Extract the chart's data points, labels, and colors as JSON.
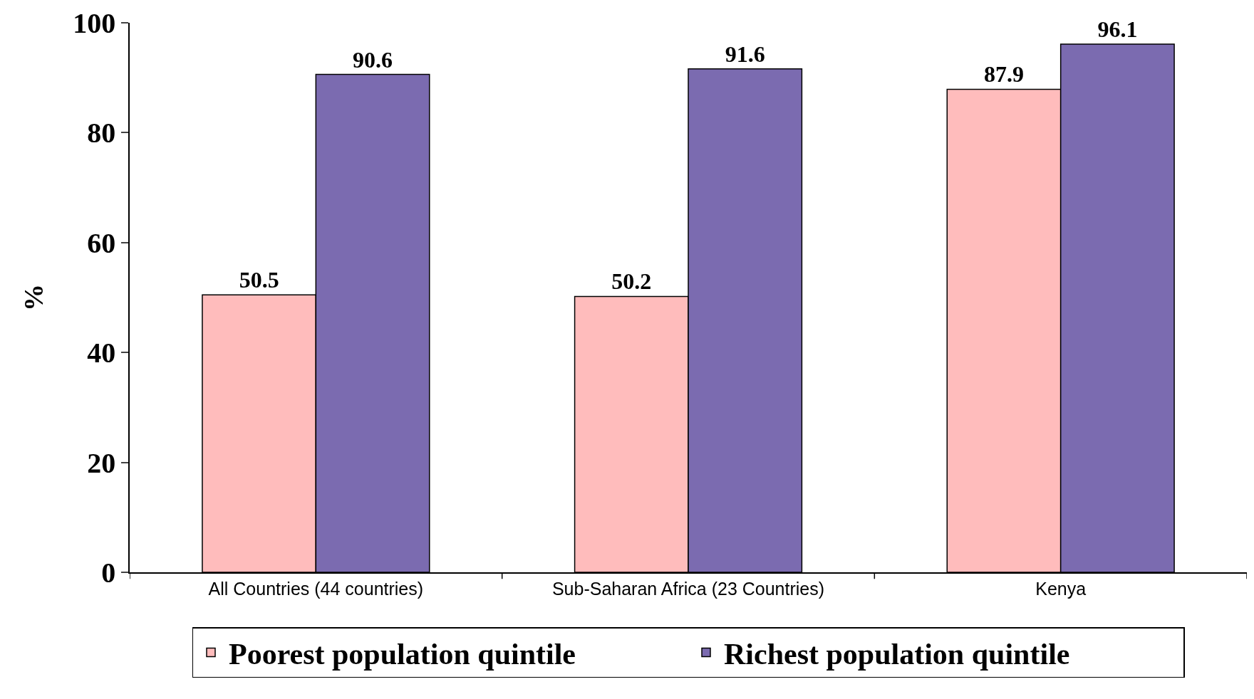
{
  "chart_data": {
    "type": "bar",
    "ylabel": "%",
    "categories": [
      "All Countries (44 countries)",
      "Sub-Saharan Africa (23 Countries)",
      "Kenya"
    ],
    "series": [
      {
        "name": "Poorest population quintile",
        "color": "#ffbcbc",
        "values": [
          50.5,
          50.2,
          87.9
        ]
      },
      {
        "name": "Richest population quintile",
        "color": "#7b6bb0",
        "values": [
          90.6,
          91.6,
          96.1
        ]
      }
    ],
    "ylim": [
      0,
      100
    ],
    "yticks": [
      0,
      20,
      40,
      60,
      80,
      100
    ],
    "grid": false,
    "legend": "bottom",
    "data_labels": true
  }
}
